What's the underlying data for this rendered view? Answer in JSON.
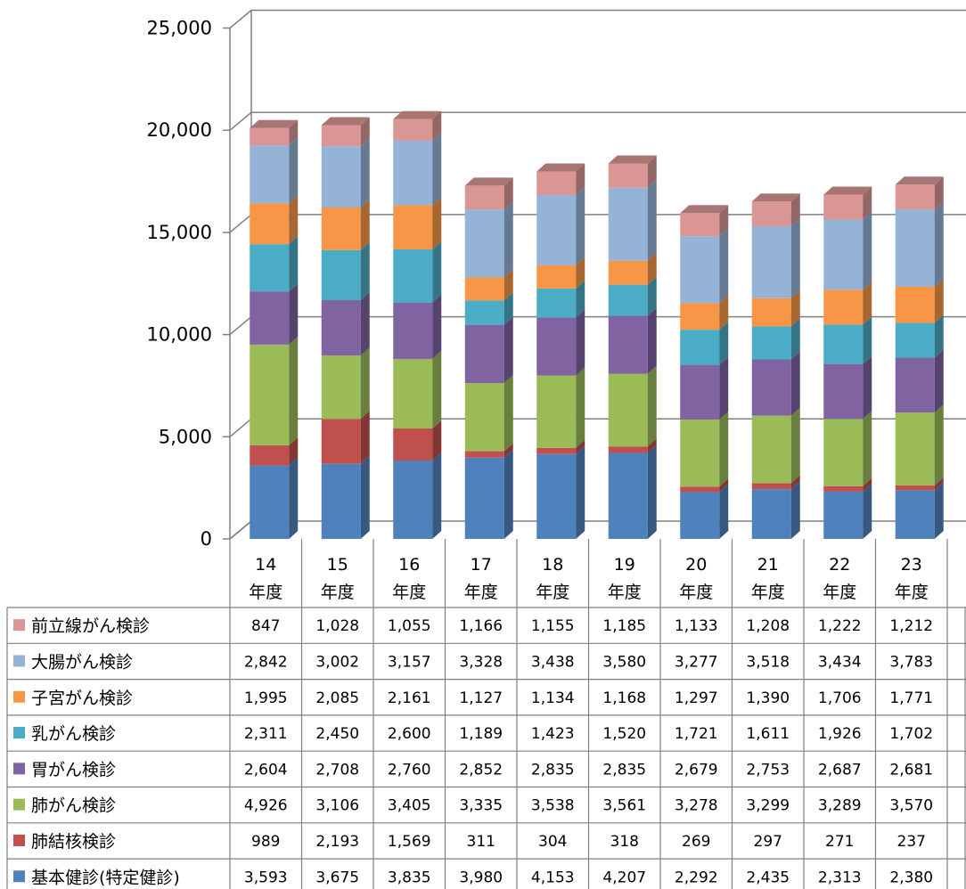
{
  "chart_data": {
    "type": "bar",
    "stacked": true,
    "three_d": true,
    "ylim": [
      0,
      25000
    ],
    "yticks": [
      "0",
      "5,000",
      "10,000",
      "15,000",
      "20,000",
      "25,000"
    ],
    "grid": true,
    "legend": "data-table-left",
    "categories": [
      {
        "num": "14",
        "unit": "年度"
      },
      {
        "num": "15",
        "unit": "年度"
      },
      {
        "num": "16",
        "unit": "年度"
      },
      {
        "num": "17",
        "unit": "年度"
      },
      {
        "num": "18",
        "unit": "年度"
      },
      {
        "num": "19",
        "unit": "年度"
      },
      {
        "num": "20",
        "unit": "年度"
      },
      {
        "num": "21",
        "unit": "年度"
      },
      {
        "num": "22",
        "unit": "年度"
      },
      {
        "num": "23",
        "unit": "年度"
      }
    ],
    "series": [
      {
        "name": "基本健診(特定健診)",
        "color": "#4F81BD",
        "values": [
          3593,
          3675,
          3835,
          3980,
          4153,
          4207,
          2292,
          2435,
          2313,
          2380
        ],
        "labels": [
          "3,593",
          "3,675",
          "3,835",
          "3,980",
          "4,153",
          "4,207",
          "2,292",
          "2,435",
          "2,313",
          "2,380"
        ]
      },
      {
        "name": "肺結核検診",
        "color": "#C0504D",
        "values": [
          989,
          2193,
          1569,
          311,
          304,
          318,
          269,
          297,
          271,
          237
        ],
        "labels": [
          "989",
          "2,193",
          "1,569",
          "311",
          "304",
          "318",
          "269",
          "297",
          "271",
          "237"
        ]
      },
      {
        "name": "肺がん検診",
        "color": "#9BBB59",
        "values": [
          4926,
          3106,
          3405,
          3335,
          3538,
          3561,
          3278,
          3299,
          3289,
          3570
        ],
        "labels": [
          "4,926",
          "3,106",
          "3,405",
          "3,335",
          "3,538",
          "3,561",
          "3,278",
          "3,299",
          "3,289",
          "3,570"
        ]
      },
      {
        "name": "胃がん検診",
        "color": "#8064A2",
        "values": [
          2604,
          2708,
          2760,
          2852,
          2835,
          2835,
          2679,
          2753,
          2687,
          2681
        ],
        "labels": [
          "2,604",
          "2,708",
          "2,760",
          "2,852",
          "2,835",
          "2,835",
          "2,679",
          "2,753",
          "2,687",
          "2,681"
        ]
      },
      {
        "name": "乳がん検診",
        "color": "#4BACC6",
        "values": [
          2311,
          2450,
          2600,
          1189,
          1423,
          1520,
          1721,
          1611,
          1926,
          1702
        ],
        "labels": [
          "2,311",
          "2,450",
          "2,600",
          "1,189",
          "1,423",
          "1,520",
          "1,721",
          "1,611",
          "1,926",
          "1,702"
        ]
      },
      {
        "name": "子宮がん検診",
        "color": "#F79646",
        "values": [
          1995,
          2085,
          2161,
          1127,
          1134,
          1168,
          1297,
          1390,
          1706,
          1771
        ],
        "labels": [
          "1,995",
          "2,085",
          "2,161",
          "1,127",
          "1,134",
          "1,168",
          "1,297",
          "1,390",
          "1,706",
          "1,771"
        ]
      },
      {
        "name": "大腸がん検診",
        "color": "#95B3D7",
        "values": [
          2842,
          3002,
          3157,
          3328,
          3438,
          3580,
          3277,
          3518,
          3434,
          3783
        ],
        "labels": [
          "2,842",
          "3,002",
          "3,157",
          "3,328",
          "3,438",
          "3,580",
          "3,277",
          "3,518",
          "3,434",
          "3,783"
        ]
      },
      {
        "name": "前立線がん検診",
        "color": "#D99694",
        "values": [
          847,
          1028,
          1055,
          1166,
          1155,
          1185,
          1133,
          1208,
          1222,
          1212
        ],
        "labels": [
          "847",
          "1,028",
          "1,055",
          "1,166",
          "1,155",
          "1,185",
          "1,133",
          "1,208",
          "1,222",
          "1,212"
        ]
      }
    ]
  }
}
